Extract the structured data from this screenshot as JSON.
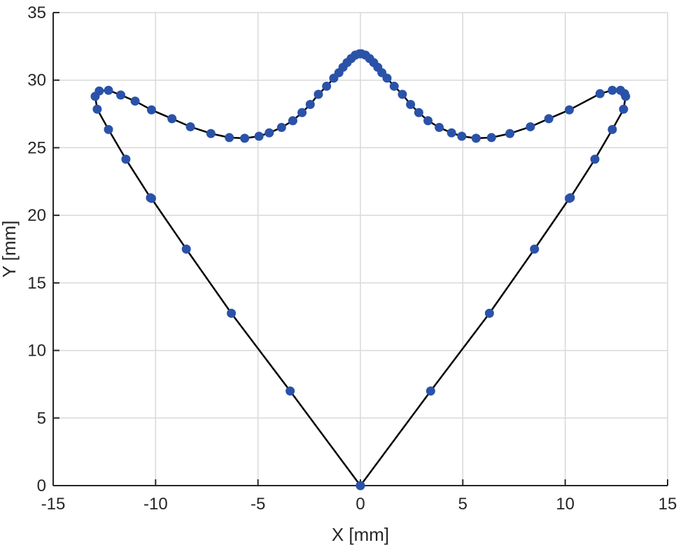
{
  "chart_data": {
    "type": "scatter",
    "title": "",
    "xlabel": "X [mm]",
    "ylabel": "Y [mm]",
    "xlim": [
      -15,
      15
    ],
    "ylim": [
      0,
      35
    ],
    "xticks": [
      -15,
      -10,
      -5,
      0,
      5,
      10,
      15
    ],
    "yticks": [
      0,
      5,
      10,
      15,
      20,
      25,
      30,
      35
    ],
    "grid": true,
    "legend": "none",
    "line_color": "#000000",
    "marker_color": "#2a52a8",
    "series": [
      {
        "x": [
          0,
          3.43,
          6.3,
          8.5,
          10.2,
          10.25,
          11.45,
          12.3,
          12.85,
          12.95,
          12.9,
          12.7,
          12.3,
          11.7,
          10.2,
          9.2,
          8.3,
          7.3,
          6.4,
          5.65,
          4.95,
          4.45,
          3.85,
          3.3,
          2.85,
          2.45,
          2.05,
          1.65,
          1.3,
          1.05,
          0.85,
          0.65,
          0.45,
          0.25,
          0.05,
          -0.05,
          -0.25,
          -0.45,
          -0.65,
          -0.85,
          -1.05,
          -1.3,
          -1.65,
          -2.05,
          -2.45,
          -2.85,
          -3.3,
          -3.85,
          -4.45,
          -4.95,
          -5.65,
          -6.4,
          -7.3,
          -8.3,
          -9.2,
          -10.2,
          -11.0,
          -11.7,
          -12.3,
          -12.75,
          -12.95,
          -12.85,
          -12.3,
          -11.45,
          -10.25,
          -10.2,
          -8.5,
          -6.3,
          -3.43,
          0
        ],
        "y": [
          0,
          7.0,
          12.75,
          17.5,
          21.25,
          21.3,
          24.15,
          26.35,
          27.85,
          28.8,
          29.0,
          29.25,
          29.25,
          29.0,
          27.8,
          27.15,
          26.55,
          26.05,
          25.75,
          25.7,
          25.85,
          26.1,
          26.5,
          27.0,
          27.6,
          28.2,
          28.95,
          29.55,
          30.15,
          30.55,
          30.95,
          31.3,
          31.6,
          31.85,
          31.95,
          31.95,
          31.85,
          31.6,
          31.3,
          30.95,
          30.55,
          30.15,
          29.55,
          28.95,
          28.2,
          27.6,
          27.0,
          26.5,
          26.1,
          25.85,
          25.7,
          25.75,
          26.05,
          26.55,
          27.15,
          27.8,
          28.45,
          28.9,
          29.25,
          29.2,
          28.8,
          27.85,
          26.35,
          24.15,
          21.3,
          21.25,
          17.5,
          12.75,
          7.0,
          0
        ]
      }
    ]
  }
}
